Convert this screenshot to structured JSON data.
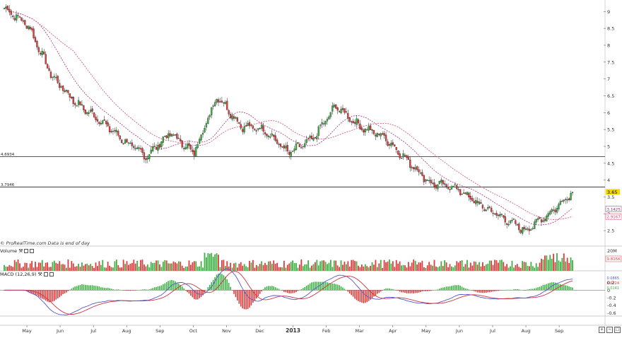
{
  "source_note": "© ProRealTime.com  Data is end of day",
  "panes": {
    "volume_title": "Volume",
    "macd_title": "MACD (12,26,9)"
  },
  "colors": {
    "up": "#3cb043",
    "down": "#e03a3a",
    "ma_short": "#a0307a",
    "ma_long": "#d24a6a",
    "macd_line": "#5555cc",
    "signal_line": "#cc3344",
    "price_tag": "#f5d800"
  },
  "icons": [
    "wrench-icon",
    "maximize-icon",
    "close-icon",
    "zoom-in-icon",
    "zoom-out-icon"
  ],
  "chart_data": [
    {
      "type": "candlestick",
      "name": "price",
      "y_range": [
        2,
        9.3
      ],
      "y_ticks": [
        "9",
        "8.5",
        "8",
        "7.5",
        "7",
        "6.5",
        "6",
        "5.5",
        "5",
        "4.5",
        "4",
        "3.5",
        "3",
        "2.5"
      ],
      "x_ticks": [
        "May",
        "Jun",
        "Jul",
        "Aug",
        "Sep",
        "Oct",
        "Nov",
        "Dec",
        "2013",
        "Feb",
        "Mar",
        "Apr",
        "May",
        "Jun",
        "Jul",
        "Aug",
        "Sep"
      ],
      "key_points": [
        {
          "x": "May 2012",
          "close": 9.1
        },
        {
          "x": "mid-May",
          "close": 8.6
        },
        {
          "x": "late-May",
          "close": 7.1
        },
        {
          "x": "Jun",
          "close": 6.3
        },
        {
          "x": "late-Jun",
          "close": 5.8
        },
        {
          "x": "early-Jul",
          "close": 5.2
        },
        {
          "x": "Aug",
          "close": 4.7
        },
        {
          "x": "mid-Aug",
          "close": 5.4
        },
        {
          "x": "Sep",
          "close": 4.8
        },
        {
          "x": "mid-Sep",
          "close": 6.5
        },
        {
          "x": "Oct",
          "close": 5.6
        },
        {
          "x": "Nov",
          "close": 5.5
        },
        {
          "x": "mid-Nov",
          "close": 4.8
        },
        {
          "x": "Dec",
          "close": 5.2
        },
        {
          "x": "2013",
          "close": 6.2
        },
        {
          "x": "Feb",
          "close": 5.6
        },
        {
          "x": "Mar",
          "close": 5.3
        },
        {
          "x": "mid-Mar",
          "close": 4.6
        },
        {
          "x": "Apr",
          "close": 3.9
        },
        {
          "x": "May 2013",
          "close": 3.8
        },
        {
          "x": "mid-May",
          "close": 3.3
        },
        {
          "x": "Jun 2013",
          "close": 2.9
        },
        {
          "x": "Jul 2013",
          "close": 2.5
        },
        {
          "x": "Aug 2013",
          "close": 3.0
        },
        {
          "x": "late-Aug",
          "close": 3.65
        }
      ],
      "hlines": [
        {
          "label": "4.6934",
          "value": 4.6934
        },
        {
          "label": "3.7946",
          "value": 3.7946
        }
      ],
      "last_price": "3.65",
      "ma_tags": [
        "3.1425",
        "2.9167"
      ]
    },
    {
      "type": "bar",
      "name": "volume",
      "y_ticks": [
        "20M"
      ],
      "last_value": "9.815K"
    },
    {
      "type": "line",
      "name": "macd",
      "y_ticks": [
        "0.2",
        "0",
        "-0.2",
        "-0.4",
        "-0.6"
      ],
      "tags": [
        "0.0865",
        "0.0724",
        "0.0141"
      ]
    }
  ]
}
